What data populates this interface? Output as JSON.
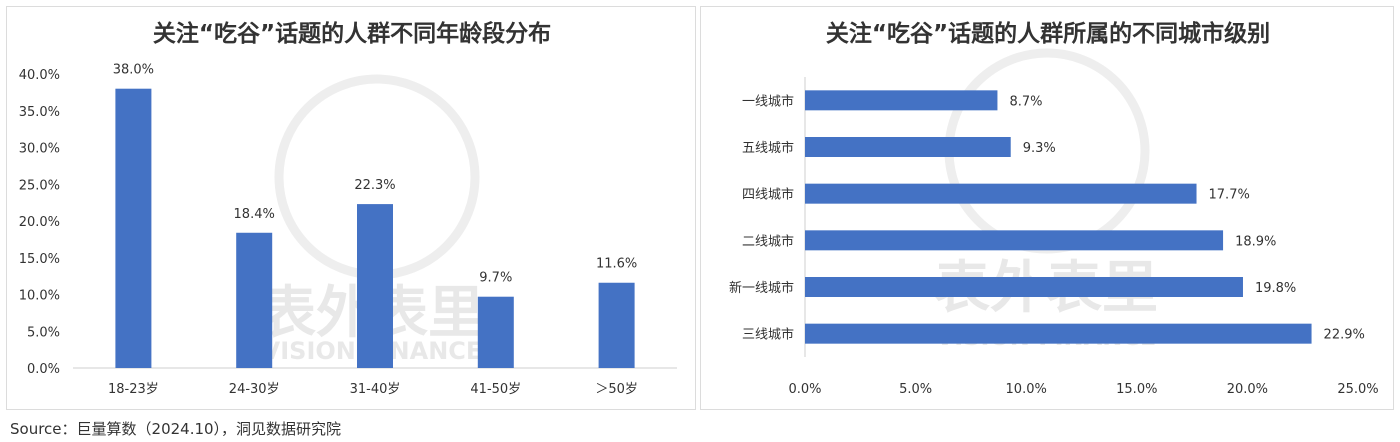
{
  "chart_data": [
    {
      "type": "bar",
      "title": "关注“吃谷”话题的人群不同年龄段分布",
      "categories": [
        "18-23岁",
        "24-30岁",
        "31-40岁",
        "41-50岁",
        "＞50岁"
      ],
      "values": [
        38.0,
        18.4,
        22.3,
        9.7,
        11.6
      ],
      "value_labels": [
        "38.0%",
        "18.4%",
        "22.3%",
        "9.7%",
        "11.6%"
      ],
      "ylim": [
        0,
        40
      ],
      "yticks": [
        "0.0%",
        "5.0%",
        "10.0%",
        "15.0%",
        "20.0%",
        "25.0%",
        "30.0%",
        "35.0%",
        "40.0%"
      ],
      "color": "#4472c4",
      "grid": false
    },
    {
      "type": "bar",
      "orientation": "horizontal",
      "title": "关注“吃谷”话题的人群所属的不同城市级别",
      "categories": [
        "一线城市",
        "五线城市",
        "四线城市",
        "二线城市",
        "新一线城市",
        "三线城市"
      ],
      "values": [
        8.7,
        9.3,
        17.7,
        18.9,
        19.8,
        22.9
      ],
      "value_labels": [
        "8.7%",
        "9.3%",
        "17.7%",
        "18.9%",
        "19.8%",
        "22.9%"
      ],
      "xlim": [
        0,
        25
      ],
      "xticks": [
        "0.0%",
        "5.0%",
        "10.0%",
        "15.0%",
        "20.0%",
        "25.0%"
      ],
      "color": "#4472c4",
      "grid": false
    }
  ],
  "watermark": {
    "text": "表外表里",
    "subtext": "VISION FINANCE"
  },
  "source": "Source：巨量算数（2024.10），洞见数据研究院"
}
